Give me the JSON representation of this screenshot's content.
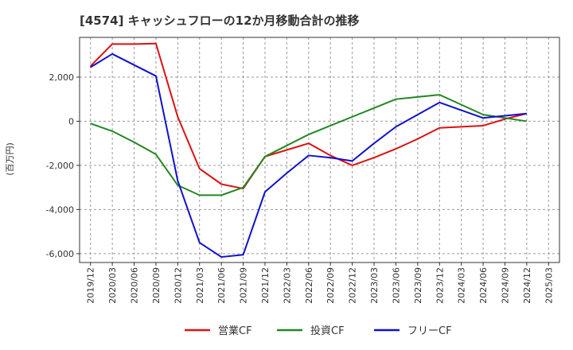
{
  "chart_data": {
    "type": "line",
    "title": "[4574]  キャッシュフローの12か月移動合計の推移",
    "ylabel": "(百万円)",
    "xlabel": "",
    "ylim": [
      -6400,
      3800
    ],
    "yticks": [
      -6000,
      -4000,
      -2000,
      0,
      2000
    ],
    "ytick_labels": [
      "-6,000",
      "-4,000",
      "-2,000",
      "0",
      "2,000"
    ],
    "categories": [
      "2019/12",
      "2020/03",
      "2020/06",
      "2020/09",
      "2020/12",
      "2021/03",
      "2021/06",
      "2021/09",
      "2021/12",
      "2022/03",
      "2022/06",
      "2022/09",
      "2022/12",
      "2023/03",
      "2023/06",
      "2023/09",
      "2023/12",
      "2024/03",
      "2024/06",
      "2024/09",
      "2024/12",
      "2025/03"
    ],
    "grid": true,
    "legend_position": "bottom",
    "series": [
      {
        "name": "営業CF",
        "color": "#dd1111",
        "values": [
          2500,
          3500,
          3500,
          3520,
          200,
          -2150,
          -2850,
          -3050,
          -1600,
          -1300,
          -1000,
          -1550,
          -2000,
          -1650,
          -1250,
          -800,
          -300,
          -250,
          -200,
          100,
          350,
          null
        ]
      },
      {
        "name": "投資CF",
        "color": "#228822",
        "values": [
          -100,
          -450,
          -950,
          -1500,
          -2900,
          -3350,
          -3350,
          -3000,
          -1600,
          -1100,
          -600,
          -200,
          200,
          600,
          1000,
          1100,
          1200,
          750,
          300,
          150,
          0,
          null
        ]
      },
      {
        "name": "フリーCF",
        "color": "#1111cc",
        "values": [
          2450,
          3050,
          2550,
          2050,
          -2700,
          -5500,
          -6150,
          -6050,
          -3200,
          -2350,
          -1550,
          -1650,
          -1800,
          -1000,
          -250,
          300,
          850,
          500,
          150,
          250,
          350,
          null
        ]
      }
    ]
  }
}
